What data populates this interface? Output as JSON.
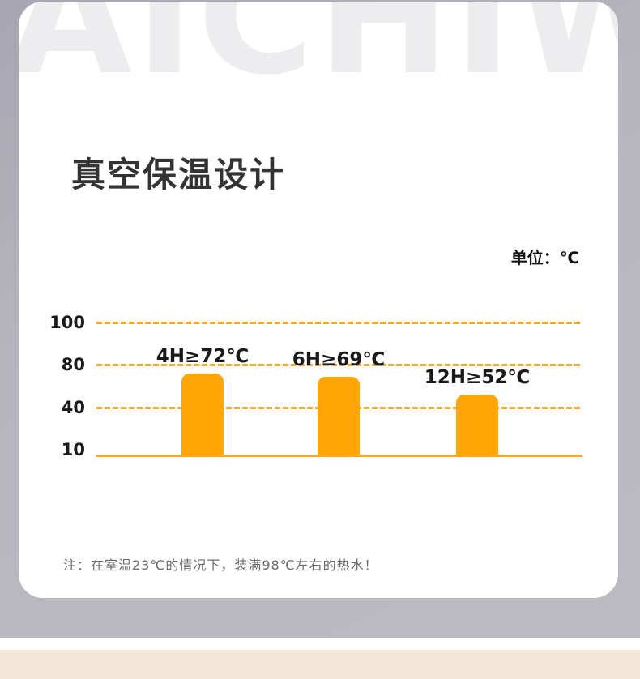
{
  "page": {
    "watermark": "AICHIW",
    "title": "真空保温设计",
    "unit_label": "单位：℃",
    "note": "注：在室温23℃的情况下，装满98℃左右的热水！"
  },
  "colors": {
    "bar": "#ffa606",
    "gridline": "#f9a726",
    "card_bg": "#ffffff",
    "page_bg": "#bcbbc1",
    "beige_strip": "#f2e6d8",
    "watermark_text": "#ededf0",
    "title_text": "#333333",
    "note_text": "#6b6b6b"
  },
  "chart_data": {
    "type": "bar",
    "title": "真空保温设计",
    "unit": "℃",
    "categories": [
      "4H",
      "6H",
      "12H"
    ],
    "values": [
      72,
      69,
      52
    ],
    "bar_labels": [
      "4H≥72℃",
      "6H≥69℃",
      "12H≥52℃"
    ],
    "yticks": [
      100,
      80,
      40,
      10
    ],
    "baseline_value": 10,
    "xlabel": "",
    "ylabel": "",
    "grid": "dashed-horizontal",
    "note": "注：在室温23℃的情况下，装满98℃左右的热水！"
  }
}
